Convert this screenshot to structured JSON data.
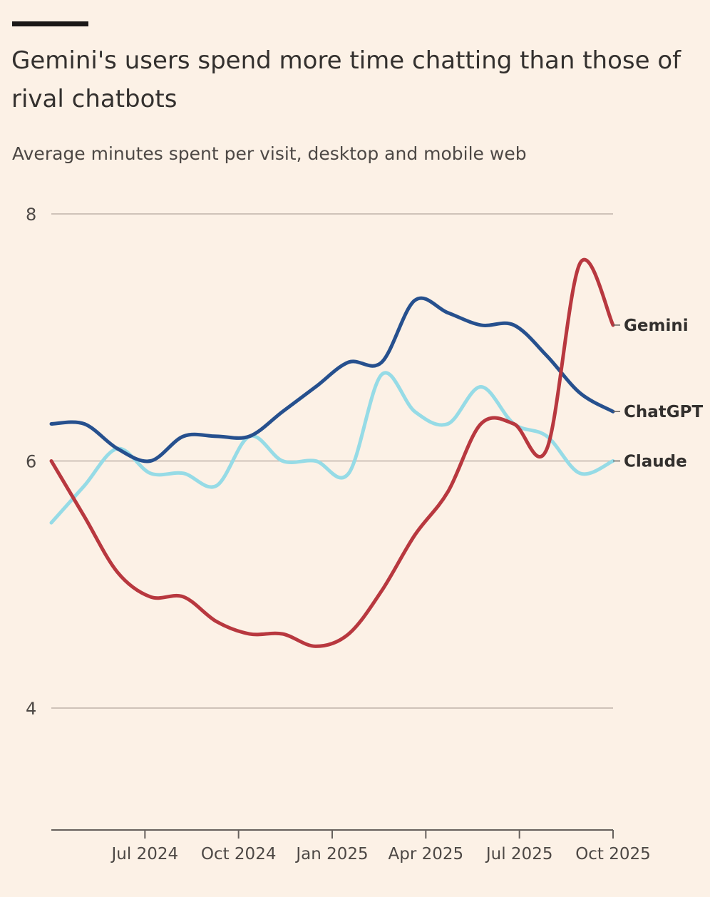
{
  "header": {
    "title": "Gemini's users spend more time chatting than those of rival chatbots",
    "subtitle": "Average minutes spent per visit, desktop and mobile web"
  },
  "chart_data": {
    "type": "line",
    "title": "Gemini's users spend more time chatting than those of rival chatbots",
    "subtitle": "Average minutes spent per visit, desktop and mobile web",
    "xlabel": "",
    "ylabel": "",
    "ylim": [
      3,
      8
    ],
    "xlim": [
      "2024-04",
      "2025-10"
    ],
    "y_ticks": [
      4,
      6,
      8
    ],
    "x_ticks": [
      "Jul 2024",
      "Oct 2024",
      "Jan 2025",
      "Apr 2025",
      "Jul 2025",
      "Oct 2025"
    ],
    "grid": true,
    "legend": "direct labels at line ends (right)",
    "x": [
      "2024-04",
      "2024-05",
      "2024-06",
      "2024-07",
      "2024-08",
      "2024-09",
      "2024-10",
      "2024-11",
      "2024-12",
      "2025-01",
      "2025-02",
      "2025-03",
      "2025-04",
      "2025-05",
      "2025-06",
      "2025-07",
      "2025-08",
      "2025-09",
      "2025-10"
    ],
    "series": [
      {
        "name": "Gemini",
        "color": "#b8383f",
        "values": [
          6.0,
          5.55,
          5.1,
          4.9,
          4.9,
          4.7,
          4.6,
          4.6,
          4.5,
          4.6,
          4.95,
          5.4,
          5.75,
          6.3,
          6.3,
          6.1,
          7.6,
          7.1,
          null
        ]
      },
      {
        "name": "ChatGPT",
        "color": "#26508e",
        "values": [
          6.3,
          6.3,
          6.1,
          6.0,
          6.2,
          6.2,
          6.2,
          6.4,
          6.6,
          6.8,
          6.8,
          7.3,
          7.2,
          7.1,
          7.1,
          6.85,
          6.55,
          6.4,
          null
        ]
      },
      {
        "name": "Claude",
        "color": "#96dbe6",
        "values": [
          5.5,
          5.8,
          6.1,
          5.9,
          5.9,
          5.8,
          6.2,
          6.0,
          6.0,
          5.9,
          6.7,
          6.4,
          6.3,
          6.6,
          6.3,
          6.2,
          5.9,
          6.0,
          null
        ]
      }
    ]
  }
}
